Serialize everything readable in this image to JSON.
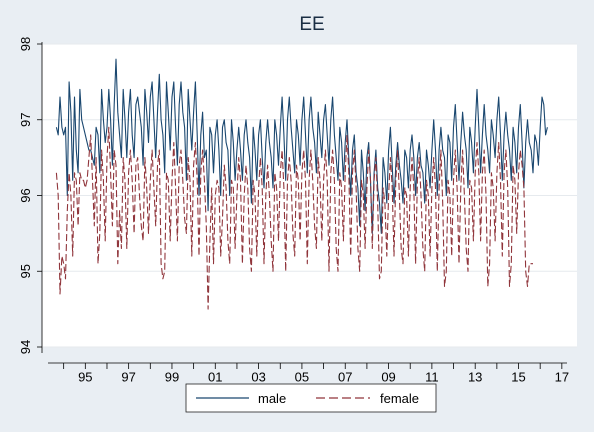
{
  "chart_data": {
    "type": "line",
    "title": "EE",
    "xlabel": "",
    "ylabel": "",
    "xlim": [
      1993.0,
      2017.7
    ],
    "ylim": [
      94,
      98
    ],
    "grid": true,
    "legend_position": "bottom",
    "x_ticks": [
      {
        "value": 1995,
        "label": "95"
      },
      {
        "value": 1997,
        "label": "97"
      },
      {
        "value": 1999,
        "label": "99"
      },
      {
        "value": 2001,
        "label": "01"
      },
      {
        "value": 2003,
        "label": "03"
      },
      {
        "value": 2005,
        "label": "05"
      },
      {
        "value": 2007,
        "label": "07"
      },
      {
        "value": 2009,
        "label": "09"
      },
      {
        "value": 2011,
        "label": "11"
      },
      {
        "value": 2013,
        "label": "13"
      },
      {
        "value": 2015,
        "label": "15"
      },
      {
        "value": 2017,
        "label": "17"
      }
    ],
    "y_ticks": [
      {
        "value": 94,
        "label": "94"
      },
      {
        "value": 95,
        "label": "95"
      },
      {
        "value": 96,
        "label": "96"
      },
      {
        "value": 97,
        "label": "97"
      },
      {
        "value": 98,
        "label": "98"
      }
    ],
    "series": [
      {
        "name": "male",
        "color": "#1a476f",
        "dash": "solid",
        "start": [
          1993,
          9
        ],
        "frequency": "monthly",
        "values": [
          96.9,
          96.8,
          97.3,
          96.9,
          96.8,
          96.9,
          96.0,
          97.5,
          97.1,
          96.2,
          97.3,
          96.6,
          96.3,
          97.4,
          97.0,
          96.9,
          96.8,
          96.7,
          96.6,
          96.6,
          96.5,
          96.4,
          96.9,
          96.8,
          96.3,
          97.4,
          97.0,
          96.7,
          96.9,
          97.4,
          97.0,
          96.4,
          97.2,
          97.8,
          97.1,
          96.8,
          96.5,
          97.4,
          97.0,
          96.5,
          97.1,
          97.4,
          96.8,
          96.5,
          97.2,
          97.3,
          97.1,
          96.9,
          96.4,
          97.4,
          97.1,
          96.7,
          97.3,
          97.5,
          97.0,
          96.5,
          97.1,
          97.6,
          97.0,
          96.8,
          96.3,
          97.5,
          97.1,
          96.6,
          97.3,
          97.5,
          96.9,
          96.4,
          97.2,
          97.5,
          97.1,
          96.9,
          96.2,
          97.4,
          97.0,
          96.6,
          97.1,
          97.5,
          96.8,
          96.0,
          96.8,
          97.1,
          96.5,
          96.6,
          95.8,
          96.9,
          96.8,
          96.3,
          96.8,
          97.0,
          96.6,
          96.0,
          96.9,
          97.0,
          96.7,
          96.6,
          96.0,
          97.0,
          96.7,
          96.2,
          96.6,
          96.9,
          96.6,
          96.2,
          96.8,
          97.0,
          96.7,
          96.5,
          95.9,
          96.9,
          96.6,
          96.2,
          96.8,
          97.0,
          96.5,
          96.1,
          96.7,
          97.0,
          96.7,
          96.5,
          96.1,
          97.0,
          96.8,
          96.4,
          96.9,
          97.3,
          96.8,
          96.2,
          97.0,
          97.3,
          96.9,
          96.6,
          96.3,
          97.0,
          96.8,
          96.4,
          97.0,
          97.3,
          96.8,
          96.3,
          97.0,
          97.3,
          96.9,
          96.7,
          96.3,
          97.1,
          96.8,
          96.5,
          97.0,
          97.2,
          96.8,
          96.4,
          97.0,
          97.3,
          96.8,
          96.5,
          96.2,
          96.9,
          96.7,
          96.2,
          96.7,
          97.0,
          96.5,
          96.0,
          96.6,
          96.8,
          96.3,
          96.1,
          95.6,
          96.6,
          96.3,
          95.8,
          96.5,
          96.7,
          96.2,
          95.5,
          96.3,
          96.6,
          96.1,
          95.9,
          95.5,
          96.5,
          96.3,
          95.9,
          96.6,
          96.9,
          96.4,
          95.9,
          96.4,
          96.7,
          96.4,
          96.2,
          95.9,
          96.6,
          96.5,
          96.1,
          96.6,
          96.8,
          96.5,
          96.0,
          96.5,
          96.7,
          96.4,
          96.3,
          95.9,
          96.6,
          96.4,
          96.1,
          96.6,
          97.0,
          96.6,
          96.0,
          96.6,
          96.9,
          96.6,
          96.5,
          96.0,
          96.8,
          96.7,
          96.2,
          96.9,
          97.2,
          96.7,
          96.2,
          96.7,
          97.1,
          96.8,
          96.6,
          96.1,
          96.9,
          96.7,
          96.3,
          96.9,
          97.4,
          96.9,
          96.3,
          96.8,
          97.2,
          96.8,
          96.6,
          96.3,
          97.0,
          96.8,
          96.5,
          97.0,
          97.3,
          96.8,
          96.2,
          96.8,
          97.1,
          96.8,
          96.6,
          96.2,
          96.9,
          96.7,
          96.3,
          96.9,
          97.2,
          96.7,
          96.1,
          96.7,
          97.0,
          96.7,
          96.6,
          96.3,
          96.8,
          96.7,
          96.4,
          96.9,
          97.3,
          97.2,
          96.8,
          96.9
        ]
      },
      {
        "name": "female",
        "color": "#90353b",
        "dash": "long-dash",
        "start": [
          1993,
          9
        ],
        "frequency": "monthly",
        "values": [
          96.3,
          96.0,
          94.7,
          95.2,
          95.1,
          94.9,
          95.8,
          96.3,
          96.0,
          95.2,
          96.3,
          96.2,
          95.6,
          96.3,
          96.2,
          96.2,
          96.1,
          96.2,
          96.5,
          96.8,
          96.2,
          95.6,
          96.5,
          95.1,
          95.5,
          96.6,
          96.2,
          95.4,
          96.5,
          96.9,
          96.3,
          95.6,
          96.6,
          96.4,
          95.1,
          95.8,
          95.3,
          96.5,
          96.2,
          95.3,
          96.3,
          96.6,
          96.2,
          95.5,
          96.4,
          96.5,
          96.0,
          95.6,
          95.4,
          96.5,
          96.1,
          95.5,
          96.2,
          96.6,
          96.1,
          95.6,
          96.4,
          96.6,
          95.1,
          94.9,
          95.0,
          96.3,
          96.2,
          95.4,
          96.2,
          96.7,
          96.1,
          95.4,
          96.4,
          96.6,
          96.2,
          95.7,
          95.5,
          96.5,
          96.2,
          95.2,
          96.4,
          96.7,
          96.2,
          95.2,
          96.3,
          96.6,
          96.2,
          95.6,
          94.5,
          95.4,
          96.1,
          95.1,
          96.0,
          96.2,
          96.1,
          95.2,
          95.7,
          96.4,
          96.1,
          95.4,
          95.1,
          96.2,
          96.1,
          95.3,
          96.0,
          96.5,
          96.2,
          95.1,
          96.0,
          96.4,
          96.1,
          95.3,
          95.0,
          96.2,
          96.0,
          95.2,
          96.1,
          96.5,
          96.1,
          95.1,
          96.0,
          96.4,
          96.0,
          95.4,
          95.0,
          96.3,
          96.1,
          95.4,
          96.3,
          96.6,
          96.1,
          95.0,
          96.2,
          96.5,
          96.2,
          95.5,
          95.2,
          96.4,
          96.2,
          95.4,
          96.3,
          96.6,
          96.2,
          95.1,
          96.2,
          96.6,
          96.2,
          95.6,
          95.3,
          96.5,
          96.2,
          95.4,
          96.2,
          96.6,
          96.2,
          95.0,
          96.3,
          96.6,
          96.2,
          95.3,
          95.0,
          96.3,
          96.1,
          95.4,
          96.3,
          96.8,
          96.3,
          95.2,
          96.3,
          96.6,
          96.1,
          95.3,
          95.0,
          96.2,
          96.0,
          95.3,
          96.1,
          96.6,
          96.2,
          95.3,
          96.2,
          96.5,
          95.9,
          94.9,
          95.0,
          96.1,
          95.9,
          95.2,
          96.0,
          96.5,
          96.1,
          95.2,
          96.2,
          96.6,
          96.0,
          95.3,
          95.1,
          96.1,
          96.0,
          95.2,
          96.1,
          96.5,
          96.1,
          95.1,
          96.2,
          96.5,
          96.0,
          95.3,
          95.0,
          96.2,
          96.0,
          95.2,
          96.1,
          96.5,
          96.1,
          95.0,
          96.1,
          96.6,
          95.9,
          94.8,
          95.0,
          96.2,
          96.0,
          95.2,
          96.2,
          96.6,
          96.1,
          95.1,
          96.1,
          96.6,
          96.0,
          95.3,
          95.0,
          96.2,
          96.1,
          95.4,
          96.3,
          96.7,
          96.3,
          95.4,
          96.3,
          96.6,
          96.0,
          94.8,
          95.1,
          96.3,
          96.1,
          95.4,
          96.3,
          96.7,
          96.2,
          95.2,
          96.3,
          96.6,
          96.1,
          94.8,
          95.1,
          96.4,
          96.2,
          95.5,
          96.3,
          96.6,
          96.4,
          96.1,
          95.0,
          94.8,
          95.1,
          95.1,
          95.1
        ]
      }
    ]
  }
}
